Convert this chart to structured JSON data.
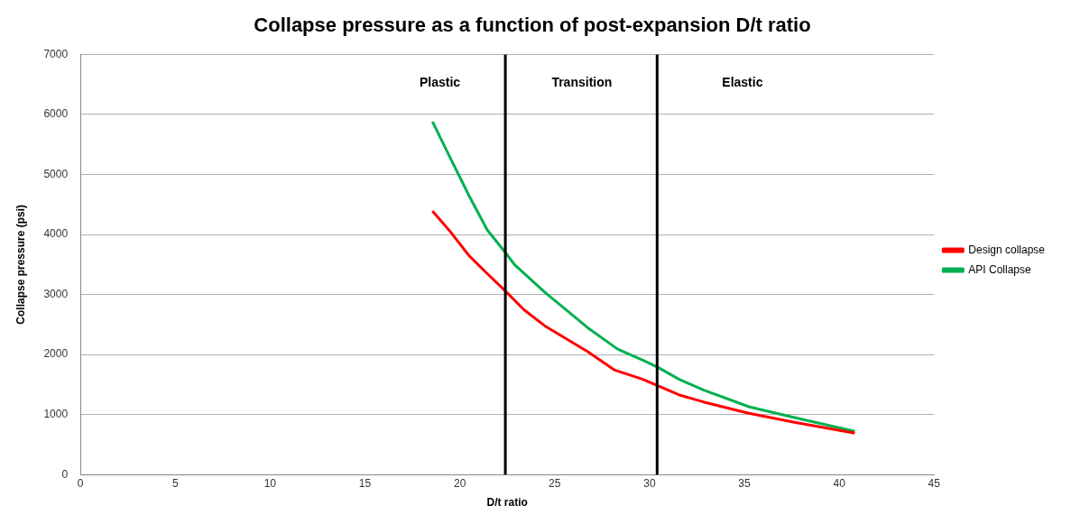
{
  "chart_data": {
    "type": "line",
    "title": "Collapse pressure as a function of post-expansion D/t ratio",
    "xlabel": "D/t ratio",
    "ylabel": "Collapse pressure (psi)",
    "xlim": [
      0,
      45
    ],
    "xticks": [
      0,
      5,
      10,
      15,
      20,
      25,
      30,
      35,
      40,
      45
    ],
    "ylim": [
      0,
      7000
    ],
    "yticks": [
      0,
      1000,
      2000,
      3000,
      4000,
      5000,
      6000,
      7000
    ],
    "grid": "y",
    "legend": "right",
    "marker": "none",
    "line_style": "solid",
    "series": [
      {
        "name": "Design collapse",
        "color": "#ff0000",
        "x": [
          18.56,
          19.52,
          20.48,
          21.44,
          22.4,
          23.37,
          24.47,
          26.73,
          28.17,
          29.62,
          30.43,
          31.54,
          32.84,
          35.24,
          37.64,
          40.82
        ],
        "values": [
          4390,
          4040,
          3650,
          3350,
          3060,
          2750,
          2480,
          2050,
          1740,
          1590,
          1480,
          1330,
          1210,
          1020,
          870,
          690
        ]
      },
      {
        "name": "API Collapse",
        "color": "#00b050",
        "x": [
          18.56,
          19.52,
          20.48,
          21.44,
          22.4,
          22.88,
          24.47,
          26.73,
          28.32,
          29.62,
          30.43,
          31.54,
          32.84,
          35.24,
          37.64,
          40.82
        ],
        "values": [
          5880,
          5260,
          4650,
          4080,
          3700,
          3500,
          3040,
          2450,
          2090,
          1910,
          1790,
          1590,
          1410,
          1130,
          950,
          720
        ]
      }
    ],
    "ref_lines": [
      {
        "axis": "x",
        "value": 22.4,
        "color": "#000000"
      },
      {
        "axis": "x",
        "value": 30.4,
        "color": "#000000"
      }
    ],
    "annotations": [
      "Plastic",
      "Transition",
      "Elastic"
    ]
  }
}
